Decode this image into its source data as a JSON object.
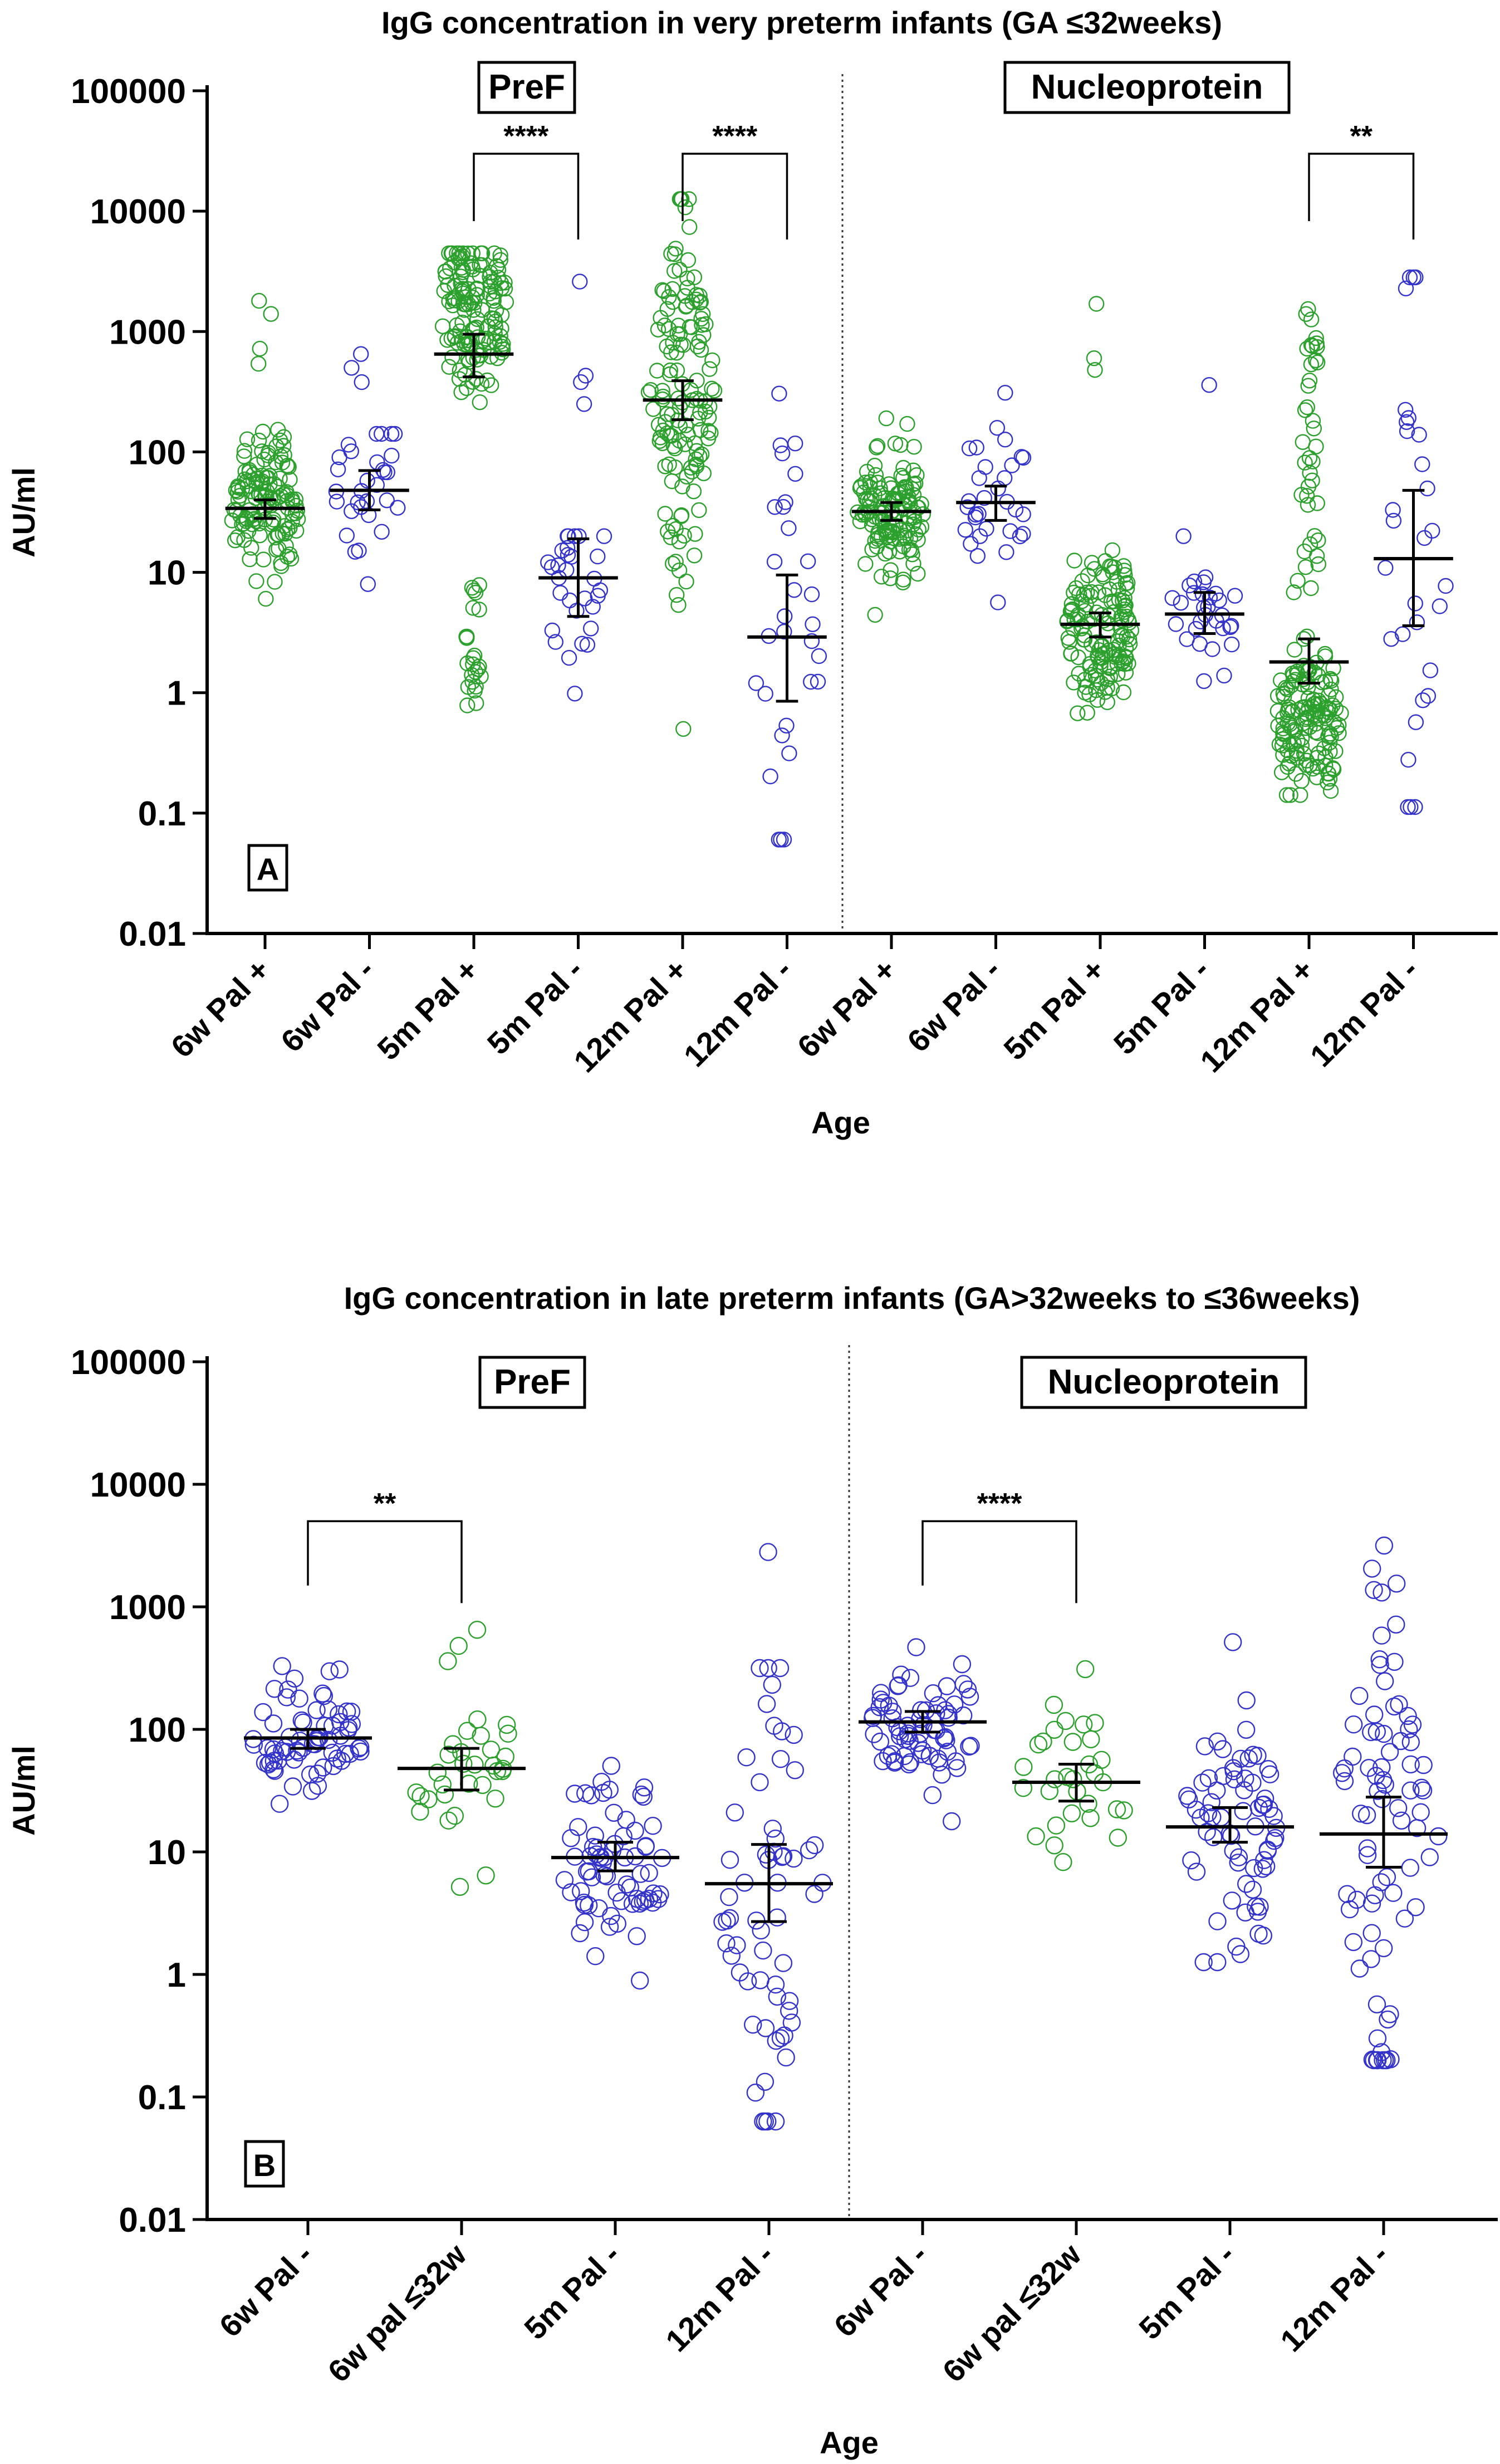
{
  "chart_data": [
    {
      "type": "scatter",
      "title": "IgG concentration in very preterm infants (GA ≤32weeks)",
      "panel_label": "A",
      "xlabel": "Age",
      "ylabel": "AU/ml",
      "yscale": "log",
      "ylim": [
        0.01,
        100000
      ],
      "ytick_labels": [
        "0.01",
        "0.1",
        "1",
        "10",
        "100",
        "1000",
        "10000",
        "100000"
      ],
      "categories": [
        "6w Pal +",
        "6w Pal -",
        "5m Pal +",
        "5m Pal -",
        "12m Pal +",
        "12m Pal -",
        "6w Pal +",
        "6w Pal -",
        "5m Pal +",
        "5m Pal -",
        "12m Pal +",
        "12m Pal -"
      ],
      "groups": [
        {
          "label": "PreF",
          "categories": [
            0,
            1,
            2,
            3,
            4,
            5
          ]
        },
        {
          "label": "Nucleoprotein",
          "categories": [
            6,
            7,
            8,
            9,
            10,
            11
          ]
        }
      ],
      "series": [
        {
          "category": 0,
          "color": "#2ca02c",
          "n": 130,
          "log_low": 0.78,
          "log_high": 2.25,
          "log_center": 1.53,
          "log_sd": 0.3,
          "geomean": 34,
          "ci": [
            28,
            40
          ],
          "outliers": [
            1800,
            1400,
            720,
            540
          ]
        },
        {
          "category": 1,
          "color": "#3333cc",
          "n": 30,
          "log_low": 0.7,
          "log_high": 2.15,
          "log_center": 1.68,
          "log_sd": 0.32,
          "geomean": 48,
          "ci": [
            33,
            70
          ],
          "outliers": [
            650,
            500,
            380
          ]
        },
        {
          "category": 2,
          "color": "#2ca02c",
          "n": 140,
          "log_low": 1.6,
          "log_high": 3.65,
          "log_center": 3.2,
          "log_sd": 0.35,
          "geomean": 650,
          "ci": [
            420,
            950
          ],
          "low_cluster": {
            "n": 24,
            "log_low": -0.15,
            "log_high": 0.9
          }
        },
        {
          "category": 3,
          "color": "#3333cc",
          "n": 30,
          "log_low": -0.35,
          "log_high": 1.3,
          "log_center": 0.85,
          "log_sd": 0.4,
          "geomean": 9,
          "ci": [
            4.3,
            19
          ],
          "outliers": [
            2600,
            430,
            380,
            250
          ]
        },
        {
          "category": 4,
          "color": "#2ca02c",
          "n": 140,
          "log_low": 0.35,
          "log_high": 4.1,
          "log_center": 2.5,
          "log_sd": 0.75,
          "geomean": 270,
          "ci": [
            185,
            390
          ],
          "outliers": [
            0.5
          ]
        },
        {
          "category": 5,
          "color": "#3333cc",
          "n": 30,
          "log_low": -1.22,
          "log_high": 2.7,
          "log_center": 0.3,
          "log_sd": 1.1,
          "geomean": 2.9,
          "ci": [
            0.85,
            9.5
          ]
        },
        {
          "category": 6,
          "color": "#2ca02c",
          "n": 130,
          "log_low": 0.35,
          "log_high": 2.3,
          "log_center": 1.5,
          "log_sd": 0.28,
          "geomean": 32,
          "ci": [
            27,
            38
          ]
        },
        {
          "category": 7,
          "color": "#3333cc",
          "n": 30,
          "log_low": 0.75,
          "log_high": 2.2,
          "log_center": 1.58,
          "log_sd": 0.3,
          "geomean": 38,
          "ci": [
            27,
            52
          ],
          "outliers": [
            310
          ]
        },
        {
          "category": 8,
          "color": "#2ca02c",
          "n": 140,
          "log_low": -0.4,
          "log_high": 1.4,
          "log_center": 0.55,
          "log_sd": 0.35,
          "geomean": 3.7,
          "ci": [
            2.9,
            4.6
          ],
          "outliers": [
            1700,
            600,
            480
          ]
        },
        {
          "category": 9,
          "color": "#3333cc",
          "n": 30,
          "log_low": -0.15,
          "log_high": 1.3,
          "log_center": 0.65,
          "log_sd": 0.35,
          "geomean": 4.5,
          "ci": [
            3.1,
            6.8
          ],
          "outliers": [
            360
          ]
        },
        {
          "category": 10,
          "color": "#2ca02c",
          "n": 140,
          "log_low": -0.85,
          "log_high": 0.7,
          "log_center": -0.2,
          "log_sd": 0.35,
          "geomean": 1.8,
          "ci": [
            1.2,
            2.8
          ],
          "high_cluster": {
            "n": 40,
            "log_low": 0.8,
            "log_high": 3.2
          }
        },
        {
          "category": 11,
          "color": "#3333cc",
          "n": 30,
          "log_low": -0.95,
          "log_high": 3.45,
          "log_center": 1.0,
          "log_sd": 1.1,
          "geomean": 13,
          "ci": [
            3.6,
            48
          ]
        }
      ],
      "significance": [
        {
          "from": 2,
          "to": 3,
          "label": "****",
          "value": 30000
        },
        {
          "from": 4,
          "to": 5,
          "label": "****",
          "value": 30000
        },
        {
          "from": 10,
          "to": 11,
          "label": "**",
          "value": 30000
        }
      ]
    },
    {
      "type": "scatter",
      "title": "IgG concentration in late preterm infants (GA>32weeks to ≤36weeks)",
      "panel_label": "B",
      "xlabel": "Age",
      "ylabel": "AU/ml",
      "yscale": "log",
      "ylim": [
        0.01,
        100000
      ],
      "ytick_labels": [
        "0.01",
        "0.1",
        "1",
        "10",
        "100",
        "1000",
        "10000",
        "100000"
      ],
      "categories": [
        "6w Pal -",
        "6w pal ≤32w",
        "5m Pal -",
        "12m Pal -",
        "6w Pal -",
        "6w pal ≤32w",
        "5m Pal -",
        "12m Pal -"
      ],
      "groups": [
        {
          "label": "PreF",
          "categories": [
            0,
            1,
            2,
            3
          ]
        },
        {
          "label": "Nucleoprotein",
          "categories": [
            4,
            5,
            6,
            7
          ]
        }
      ],
      "series": [
        {
          "category": 0,
          "color": "#3333cc",
          "n": 70,
          "log_low": 1.25,
          "log_high": 2.7,
          "log_center": 1.93,
          "log_sd": 0.25,
          "geomean": 85,
          "ci": [
            70,
            100
          ]
        },
        {
          "category": 1,
          "color": "#2ca02c",
          "n": 30,
          "log_low": 0.7,
          "log_high": 2.1,
          "log_center": 1.68,
          "log_sd": 0.3,
          "geomean": 48,
          "ci": [
            32,
            70
          ],
          "outliers": [
            650,
            480,
            360
          ]
        },
        {
          "category": 2,
          "color": "#3333cc",
          "n": 70,
          "log_low": -0.05,
          "log_high": 2.05,
          "log_center": 0.95,
          "log_sd": 0.38,
          "geomean": 9,
          "ci": [
            7,
            12
          ]
        },
        {
          "category": 3,
          "color": "#3333cc",
          "n": 60,
          "log_low": -1.2,
          "log_high": 2.5,
          "log_center": 0.75,
          "log_sd": 1.1,
          "geomean": 5.5,
          "ci": [
            2.7,
            11.5
          ],
          "outliers": [
            2800
          ]
        },
        {
          "category": 4,
          "color": "#3333cc",
          "n": 70,
          "log_low": 1.25,
          "log_high": 2.7,
          "log_center": 2.05,
          "log_sd": 0.25,
          "geomean": 115,
          "ci": [
            95,
            140
          ]
        },
        {
          "category": 5,
          "color": "#2ca02c",
          "n": 30,
          "log_low": 0.75,
          "log_high": 2.2,
          "log_center": 1.58,
          "log_sd": 0.3,
          "geomean": 37,
          "ci": [
            26,
            52
          ],
          "outliers": [
            310
          ]
        },
        {
          "category": 6,
          "color": "#3333cc",
          "n": 70,
          "log_low": 0.1,
          "log_high": 3.15,
          "log_center": 1.2,
          "log_sd": 0.55,
          "geomean": 16,
          "ci": [
            12,
            23
          ]
        },
        {
          "category": 7,
          "color": "#3333cc",
          "n": 80,
          "log_low": -0.7,
          "log_high": 3.5,
          "log_center": 1.15,
          "log_sd": 1.1,
          "geomean": 14,
          "ci": [
            7.5,
            28
          ]
        }
      ],
      "significance": [
        {
          "from": 0,
          "to": 1,
          "label": "**",
          "value": 5000
        },
        {
          "from": 4,
          "to": 5,
          "label": "****",
          "value": 5000
        }
      ]
    }
  ]
}
